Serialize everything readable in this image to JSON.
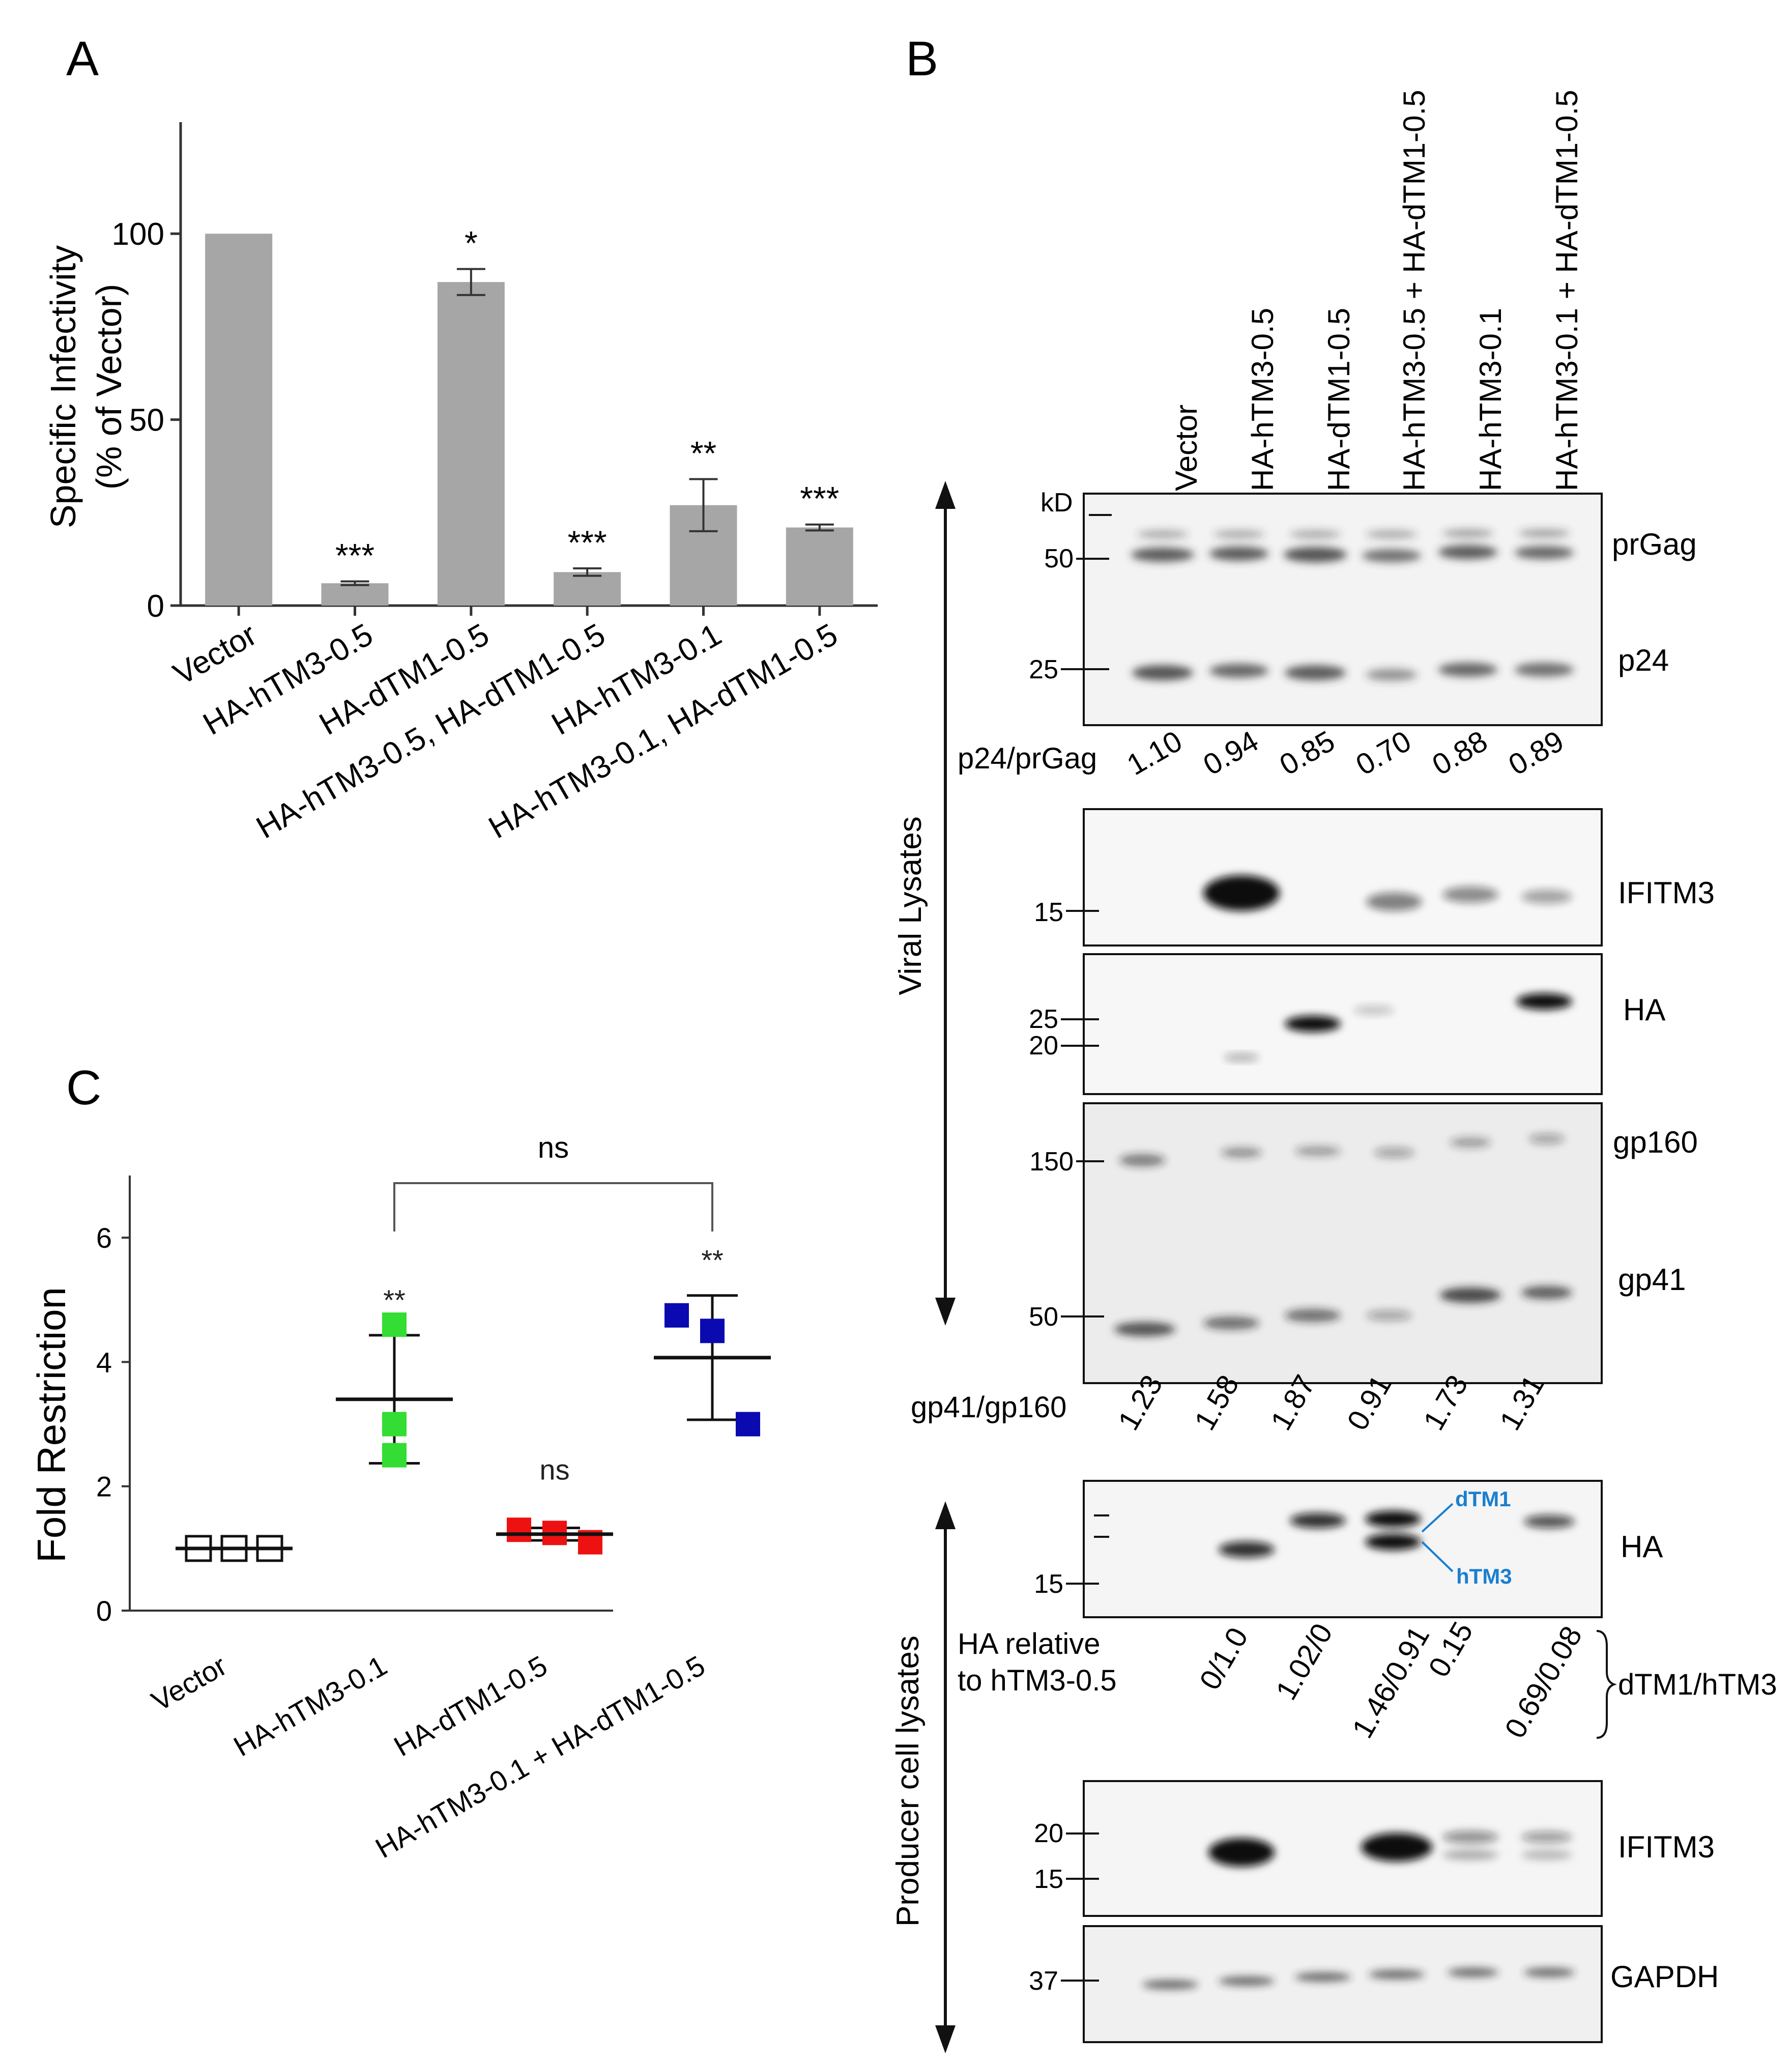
{
  "panels": {
    "a": "A",
    "b": "B",
    "c": "C"
  },
  "panel_a": {
    "ylabel_line1": "Specific Infectivity",
    "ylabel_line2": "(% of Vector)"
  },
  "panel_c": {
    "ylabel": "Fold Restriction",
    "bracket_label": "ns"
  },
  "panel_b": {
    "kd_label": "kD",
    "lanes": [
      "Vector",
      "HA-hTM3-0.5",
      "HA-dTM1-0.5",
      "HA-hTM3-0.5 + HA-dTM1-0.5",
      "HA-hTM3-0.1",
      "HA-hTM3-0.1 + HA-dTM1-0.5"
    ],
    "viral_lysates_label": "Viral Lysates",
    "producer_lysates_label": "Producer cell lysates",
    "blot_labels": {
      "prgag": "prGag",
      "p24": "p24",
      "ifitm3": "IFITM3",
      "ha": "HA",
      "gp160": "gp160",
      "gp41": "gp41",
      "ha_producer": "HA",
      "ifitm3_producer": "IFITM3",
      "gapdh": "GAPDH"
    },
    "markers": {
      "gag": [
        "50",
        "25"
      ],
      "ifitm3": [
        "15"
      ],
      "ha": [
        "25",
        "20"
      ],
      "env": [
        "150",
        "50"
      ],
      "ha_producer": [
        "15"
      ],
      "ifitm3_producer": [
        "20",
        "15"
      ],
      "gapdh": [
        "37"
      ]
    },
    "p24_ratio_label": "p24/prGag",
    "p24_ratios": [
      "1.10",
      "0.94",
      "0.85",
      "0.70",
      "0.88",
      "0.89"
    ],
    "gp41_ratio_label": "gp41/gp160",
    "gp41_ratios": [
      "1.23",
      "1.58",
      "1.87",
      "0.91",
      "1.73",
      "1.31"
    ],
    "ha_rel_line1": "HA relative",
    "ha_rel_line2": "to hTM3-0.5",
    "ha_rel_values": [
      "0/1.0",
      "1.02/0",
      "1.46/0.91",
      "0.15",
      "0.69/0.08"
    ],
    "ha_rel_key": "dTM1/hTM3",
    "band_tags": {
      "dtm1": "dTM1",
      "htm3": "hTM3"
    },
    "tag_color": "#1a7fd0"
  },
  "chart_data": [
    {
      "type": "bar",
      "categories": [
        "Vector",
        "HA-hTM3-0.5",
        "HA-dTM1-0.5",
        "HA-hTM3-0.5, HA-dTM1-0.5",
        "HA-hTM3-0.1",
        "HA-hTM3-0.1, HA-dTM1-0.5"
      ],
      "values": [
        100,
        6,
        87,
        9,
        27,
        21
      ],
      "errors": [
        0,
        0.5,
        3.5,
        1,
        7,
        0.8
      ],
      "significance": [
        "",
        "***",
        "*",
        "***",
        "**",
        "***"
      ],
      "ylabel": "Specific Infectivity (% of Vector)",
      "ylim": [
        0,
        130
      ],
      "yticks": [
        0,
        50,
        100
      ],
      "bar_color": "#a6a6a6"
    },
    {
      "type": "scatter",
      "categories": [
        "Vector",
        "HA-hTM3-0.1",
        "HA-dTM1-0.5",
        "HA-hTM3-0.1 + HA-dTM1-0.5"
      ],
      "points": [
        [
          1.0,
          1.0,
          1.0
        ],
        [
          4.6,
          3.0,
          2.5
        ],
        [
          1.3,
          1.25,
          1.1
        ],
        [
          4.75,
          4.5,
          3.0
        ]
      ],
      "means": [
        1.0,
        3.4,
        1.23,
        4.07
      ],
      "sd": [
        0,
        1.03,
        0.1,
        1.0
      ],
      "significance": [
        "",
        "**",
        "ns",
        "**"
      ],
      "colors": [
        "#ffffff",
        "#33dd33",
        "#ee1111",
        "#0a0ab0"
      ],
      "ylabel": "Fold Restriction",
      "ylim": [
        0,
        7
      ],
      "yticks": [
        0,
        2,
        4,
        6
      ]
    }
  ]
}
